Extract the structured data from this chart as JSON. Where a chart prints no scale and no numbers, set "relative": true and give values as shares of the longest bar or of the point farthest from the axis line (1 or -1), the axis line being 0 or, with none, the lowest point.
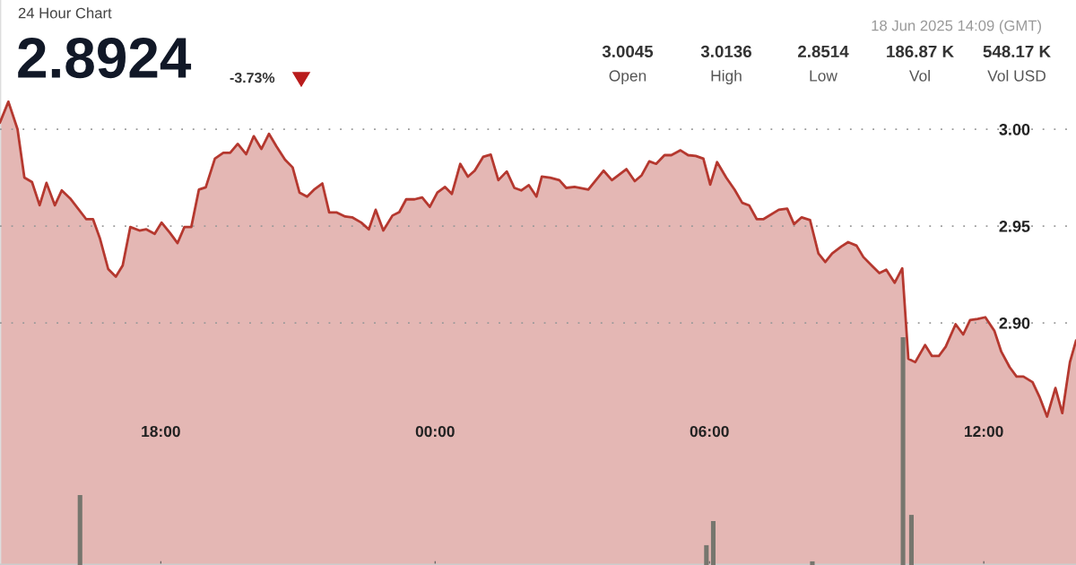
{
  "chart_data": [
    {
      "type": "area",
      "subtitle": "24 Hour Chart",
      "annotations": [
        "2.8924",
        "-3.73%",
        "18 Jun 2025 14:09 (GMT)",
        "3.0045",
        "Open",
        "3.0136",
        "High",
        "2.8514",
        "Low",
        "186.87 K",
        "Vol",
        "548.17 K",
        "Vol USD"
      ],
      "xlim": [
        "2025-06-17T14:29",
        "2025-06-18T14:01"
      ],
      "xticks": [
        {
          "value": "2025-06-17T18:00",
          "label": "18:00"
        },
        {
          "value": "2025-06-18T00:00",
          "label": "00:00"
        },
        {
          "value": "2025-06-18T06:00",
          "label": "06:00"
        },
        {
          "value": "2025-06-18T12:00",
          "label": "12:00"
        }
      ],
      "ylim": [
        2.775,
        3.0667
      ],
      "yticks": [
        {
          "value": 2.9,
          "label": "2.90"
        },
        {
          "value": 2.95,
          "label": "2.95"
        },
        {
          "value": 3.0,
          "label": "3.00"
        }
      ],
      "grid": "y",
      "series": [
        {
          "color": "#b5382f",
          "x": [
            "2025-06-17T14:29",
            "2025-06-17T14:40",
            "2025-06-17T14:52",
            "2025-06-17T15:01",
            "2025-06-17T15:11",
            "2025-06-17T15:21",
            "2025-06-17T15:30",
            "2025-06-17T15:41",
            "2025-06-17T15:50",
            "2025-06-17T16:01",
            "2025-06-17T16:22",
            "2025-06-17T16:31",
            "2025-06-17T16:40",
            "2025-06-17T16:51",
            "2025-06-17T17:01",
            "2025-06-17T17:10",
            "2025-06-17T17:20",
            "2025-06-17T17:32",
            "2025-06-17T17:41",
            "2025-06-17T17:52",
            "2025-06-17T18:01",
            "2025-06-17T18:12",
            "2025-06-17T18:22",
            "2025-06-17T18:31",
            "2025-06-17T18:40",
            "2025-06-17T18:50",
            "2025-06-17T18:59",
            "2025-06-17T19:11",
            "2025-06-17T19:22",
            "2025-06-17T19:31",
            "2025-06-17T19:41",
            "2025-06-17T19:52",
            "2025-06-17T20:02",
            "2025-06-17T20:12",
            "2025-06-17T20:22",
            "2025-06-17T20:32",
            "2025-06-17T20:43",
            "2025-06-17T20:53",
            "2025-06-17T21:02",
            "2025-06-17T21:12",
            "2025-06-17T21:22",
            "2025-06-17T21:32",
            "2025-06-17T21:41",
            "2025-06-17T21:51",
            "2025-06-17T22:02",
            "2025-06-17T22:11",
            "2025-06-17T22:23",
            "2025-06-17T22:33",
            "2025-06-17T22:42",
            "2025-06-17T22:52",
            "2025-06-17T23:04",
            "2025-06-17T23:13",
            "2025-06-17T23:22",
            "2025-06-17T23:33",
            "2025-06-17T23:43",
            "2025-06-17T23:53",
            "2025-06-18T00:03",
            "2025-06-18T00:13",
            "2025-06-18T00:22",
            "2025-06-18T00:33",
            "2025-06-18T00:43",
            "2025-06-18T00:52",
            "2025-06-18T01:03",
            "2025-06-18T01:13",
            "2025-06-18T01:23",
            "2025-06-18T01:34",
            "2025-06-18T01:44",
            "2025-06-18T01:53",
            "2025-06-18T02:03",
            "2025-06-18T02:13",
            "2025-06-18T02:20",
            "2025-06-18T02:31",
            "2025-06-18T02:43",
            "2025-06-18T02:52",
            "2025-06-18T03:03",
            "2025-06-18T03:21",
            "2025-06-18T03:41",
            "2025-06-18T03:52",
            "2025-06-18T04:11",
            "2025-06-18T04:22",
            "2025-06-18T04:31",
            "2025-06-18T04:41",
            "2025-06-18T04:50",
            "2025-06-18T05:01",
            "2025-06-18T05:10",
            "2025-06-18T05:22",
            "2025-06-18T05:32",
            "2025-06-18T05:42",
            "2025-06-18T05:52",
            "2025-06-18T06:01",
            "2025-06-18T06:10",
            "2025-06-18T06:22",
            "2025-06-18T06:33",
            "2025-06-18T06:43",
            "2025-06-18T06:52",
            "2025-06-18T07:02",
            "2025-06-18T07:11",
            "2025-06-18T07:31",
            "2025-06-18T07:42",
            "2025-06-18T07:51",
            "2025-06-18T08:01",
            "2025-06-18T08:12",
            "2025-06-18T08:23",
            "2025-06-18T08:32",
            "2025-06-18T08:41",
            "2025-06-18T08:53",
            "2025-06-18T09:02",
            "2025-06-18T09:13",
            "2025-06-18T09:22",
            "2025-06-18T09:34",
            "2025-06-18T09:43",
            "2025-06-18T09:52",
            "2025-06-18T10:03",
            "2025-06-18T10:13",
            "2025-06-18T10:21",
            "2025-06-18T10:30",
            "2025-06-18T10:43",
            "2025-06-18T10:52",
            "2025-06-18T11:01",
            "2025-06-18T11:10",
            "2025-06-18T11:23",
            "2025-06-18T11:33",
            "2025-06-18T11:42",
            "2025-06-18T11:52",
            "2025-06-18T12:02",
            "2025-06-18T12:14",
            "2025-06-18T12:23",
            "2025-06-18T12:34",
            "2025-06-18T12:43",
            "2025-06-18T12:52",
            "2025-06-18T13:04",
            "2025-06-18T13:13",
            "2025-06-18T13:23",
            "2025-06-18T13:34",
            "2025-06-18T13:43",
            "2025-06-18T13:53",
            "2025-06-18T14:01"
          ],
          "values": [
            3.0035,
            3.0142,
            3.0,
            2.975,
            2.9727,
            2.9607,
            2.9723,
            2.9607,
            2.9684,
            2.9643,
            2.9536,
            2.9536,
            2.9438,
            2.9278,
            2.9239,
            2.9296,
            2.9495,
            2.9477,
            2.9483,
            2.946,
            2.9518,
            2.9465,
            2.9412,
            2.9495,
            2.9495,
            2.9688,
            2.97,
            2.9848,
            2.9878,
            2.9878,
            2.9924,
            2.9871,
            2.9964,
            2.9898,
            2.9976,
            2.991,
            2.9843,
            2.9803,
            2.9673,
            2.9652,
            2.9691,
            2.972,
            2.957,
            2.957,
            2.9549,
            2.9545,
            2.9518,
            2.9483,
            2.9584,
            2.9477,
            2.9554,
            2.9572,
            2.9638,
            2.9638,
            2.9648,
            2.9599,
            2.9673,
            2.9702,
            2.9666,
            2.9821,
            2.9755,
            2.9786,
            2.9857,
            2.9869,
            2.9737,
            2.9782,
            2.9697,
            2.9684,
            2.9711,
            2.9652,
            2.9755,
            2.975,
            2.9737,
            2.9697,
            2.9702,
            2.9688,
            2.9786,
            2.9737,
            2.9794,
            2.9732,
            2.9762,
            2.9834,
            2.9821,
            2.9866,
            2.9866,
            2.9891,
            2.9866,
            2.9862,
            2.9848,
            2.9714,
            2.983,
            2.975,
            2.9688,
            2.962,
            2.9607,
            2.9536,
            2.9536,
            2.9584,
            2.959,
            2.951,
            2.9545,
            2.9531,
            2.9358,
            2.9314,
            2.9358,
            2.9394,
            2.9417,
            2.9399,
            2.934,
            2.9292,
            2.9257,
            2.9275,
            2.9207,
            2.9282,
            2.8815,
            2.8797,
            2.8886,
            2.8829,
            2.8829,
            2.8877,
            2.8993,
            2.894,
            2.9015,
            2.902,
            2.9029,
            2.8958,
            2.8851,
            2.8771,
            2.8723,
            2.8723,
            2.8694,
            2.8619,
            2.8516,
            2.8664,
            2.8534,
            2.8797,
            2.8908
          ]
        }
      ]
    },
    {
      "type": "bar",
      "relative": true,
      "xlim": [
        "2025-06-17T14:29",
        "2025-06-18T14:01"
      ],
      "series": [
        {
          "color": "#76766e",
          "x": [
            "2025-06-17T16:14",
            "2025-06-18T05:56",
            "2025-06-18T06:05",
            "2025-06-18T08:15",
            "2025-06-18T10:14",
            "2025-06-18T10:25"
          ],
          "values": [
            0.307,
            0.087,
            0.193,
            0.016,
            1,
            0.22
          ]
        }
      ]
    }
  ]
}
